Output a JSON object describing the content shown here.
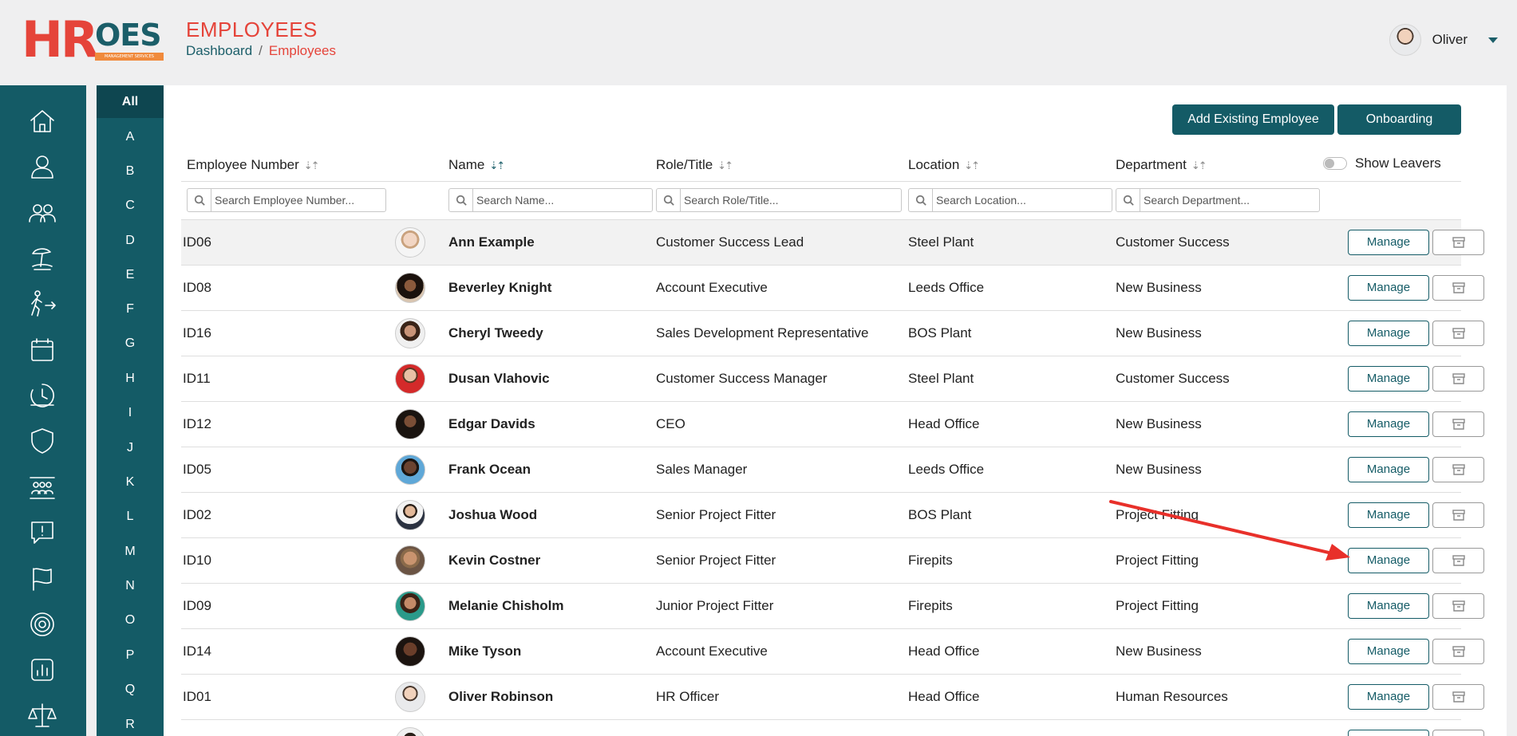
{
  "logo": {
    "hr": "HR",
    "oes": "OES",
    "sub": "MANAGEMENT SERVICES"
  },
  "page": {
    "title": "EMPLOYEES"
  },
  "breadcrumb": {
    "home": "Dashboard",
    "sep": "/",
    "current": "Employees"
  },
  "user": {
    "name": "Oliver"
  },
  "sidebar_icons": [
    "home-icon",
    "user-icon",
    "users-icon",
    "holiday-icon",
    "leave-icon",
    "calendar-icon",
    "clock-icon",
    "shield-icon",
    "team-icon",
    "alert-icon",
    "flag-icon",
    "target-icon",
    "chart-icon",
    "scales-icon"
  ],
  "alphabet": [
    "All",
    "A",
    "B",
    "C",
    "D",
    "E",
    "F",
    "G",
    "H",
    "I",
    "J",
    "K",
    "L",
    "M",
    "N",
    "O",
    "P",
    "Q",
    "R"
  ],
  "actions": {
    "add_existing": "Add Existing Employee",
    "onboarding": "Onboarding"
  },
  "table": {
    "headers": {
      "number": "Employee Number",
      "name": "Name",
      "role": "Role/Title",
      "location": "Location",
      "department": "Department"
    },
    "show_leavers": "Show Leavers",
    "placeholders": {
      "number": "Search Employee Number...",
      "name": "Search Name...",
      "role": "Search Role/Title...",
      "location": "Search Location...",
      "department": "Search Department..."
    },
    "manage_label": "Manage",
    "rows": [
      {
        "id": "ID06",
        "name": "Ann Example",
        "role": "Customer Success Lead",
        "location": "Steel Plant",
        "department": "Customer Success"
      },
      {
        "id": "ID08",
        "name": "Beverley Knight",
        "role": "Account Executive",
        "location": "Leeds Office",
        "department": "New Business"
      },
      {
        "id": "ID16",
        "name": "Cheryl Tweedy",
        "role": "Sales Development Representative",
        "location": "BOS Plant",
        "department": "New Business"
      },
      {
        "id": "ID11",
        "name": "Dusan Vlahovic",
        "role": "Customer Success Manager",
        "location": "Steel Plant",
        "department": "Customer Success"
      },
      {
        "id": "ID12",
        "name": "Edgar Davids",
        "role": "CEO",
        "location": "Head Office",
        "department": "New Business"
      },
      {
        "id": "ID05",
        "name": "Frank Ocean",
        "role": "Sales Manager",
        "location": "Leeds Office",
        "department": "New Business"
      },
      {
        "id": "ID02",
        "name": "Joshua Wood",
        "role": "Senior Project Fitter",
        "location": "BOS Plant",
        "department": "Project Fitting"
      },
      {
        "id": "ID10",
        "name": "Kevin Costner",
        "role": "Senior Project Fitter",
        "location": "Firepits",
        "department": "Project Fitting"
      },
      {
        "id": "ID09",
        "name": "Melanie Chisholm",
        "role": "Junior Project Fitter",
        "location": "Firepits",
        "department": "Project Fitting"
      },
      {
        "id": "ID14",
        "name": "Mike Tyson",
        "role": "Account Executive",
        "location": "Head Office",
        "department": "New Business"
      },
      {
        "id": "ID01",
        "name": "Oliver Robinson",
        "role": "HR Officer",
        "location": "Head Office",
        "department": "Human Resources"
      },
      {
        "id": "",
        "name": "",
        "role": "",
        "location": "",
        "department": ""
      }
    ]
  },
  "colors": {
    "brand": "#145b66",
    "accent": "#e5443a",
    "orange": "#f08a3c",
    "annotation_arrow": "#e8302a"
  }
}
